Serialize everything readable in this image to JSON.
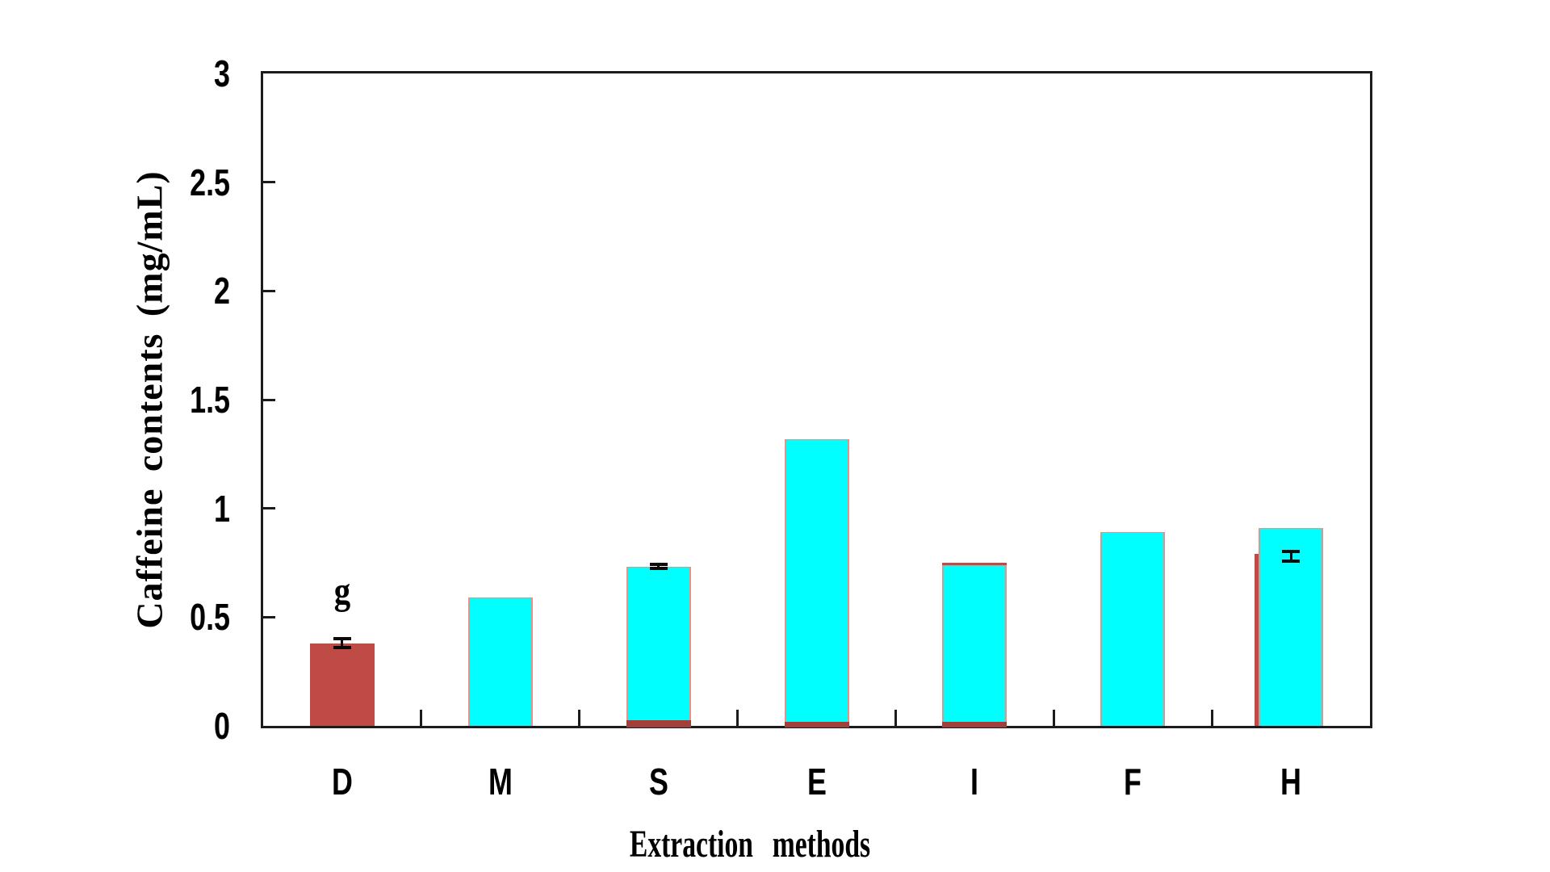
{
  "chart_data": {
    "type": "bar",
    "title": "",
    "xlabel": "Extraction methods",
    "ylabel": "Caffeine contents (mg/mL)",
    "ylim": [
      0,
      3
    ],
    "ytick_step": 0.5,
    "ytick_labels": [
      "0",
      "0.5",
      "1",
      "1.5",
      "2",
      "2.5",
      "3"
    ],
    "grid": false,
    "legend": "none",
    "categories": [
      "D",
      "M",
      "S",
      "E",
      "I",
      "F",
      "H"
    ],
    "series": [
      {
        "name": "red-series",
        "color": "#bf4b47",
        "values": [
          0.38,
          null,
          0.02,
          0.01,
          0.75,
          null,
          0.79
        ]
      },
      {
        "name": "cyan-series",
        "color": "#00ffff",
        "values": [
          null,
          0.59,
          0.73,
          1.32,
          0.74,
          0.89,
          0.91
        ]
      }
    ],
    "error_bars": [
      {
        "category": "D",
        "center": 0.38,
        "plus_minus": 0.02
      },
      {
        "category": "S",
        "center": 0.733,
        "plus_minus": 0.008
      },
      {
        "category": "H",
        "center": 0.78,
        "plus_minus": 0.022
      }
    ],
    "annotations": [
      {
        "text": "g",
        "category": "D",
        "above_value": 0.53
      }
    ],
    "bars": [
      {
        "label": "D",
        "red": 0.38,
        "cyan": null,
        "error": {
          "center": 0.38,
          "delta": 0.02
        },
        "note": "g"
      },
      {
        "label": "M",
        "red": null,
        "cyan": 0.59
      },
      {
        "label": "S",
        "red": null,
        "cyan": 0.73,
        "red_base": 0.018,
        "error": {
          "center": 0.733,
          "delta": 0.008
        }
      },
      {
        "label": "E",
        "red": null,
        "cyan": 1.32,
        "red_base": 0.01
      },
      {
        "label": "I",
        "red": null,
        "cyan": 0.74,
        "red_base": 0.01,
        "red_top": true
      },
      {
        "label": "F",
        "red": null,
        "cyan": 0.89
      },
      {
        "label": "H",
        "red": 0.79,
        "red_style": "left-line",
        "cyan": 0.91,
        "error": {
          "center": 0.78,
          "delta": 0.022
        }
      }
    ],
    "colors": {
      "red": "#bf4b47",
      "cyan": "#00ffff",
      "cyan_border": "#e79289",
      "axis": "#1c1c1c",
      "error_bar": "#0a0a0a",
      "background": "#ffffff"
    }
  }
}
